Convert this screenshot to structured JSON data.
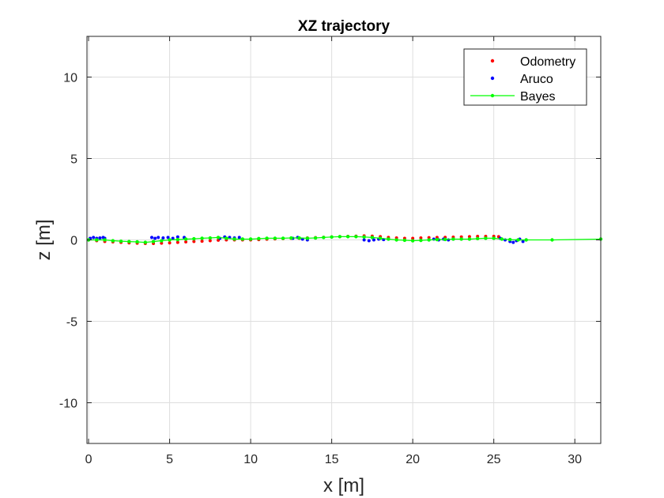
{
  "chart_data": {
    "type": "scatter",
    "title": "XZ trajectory",
    "xlabel": "x [m]",
    "ylabel": "z [m]",
    "xlim": [
      -0.1,
      31.6
    ],
    "ylim": [
      -12.5,
      12.5
    ],
    "xticks": [
      0,
      5,
      10,
      15,
      20,
      25,
      30
    ],
    "yticks": [
      -10,
      -5,
      0,
      5,
      10
    ],
    "grid": true,
    "legend_position": "top-right",
    "series": [
      {
        "name": "Odometry",
        "style": "markers",
        "color": "#ff0000",
        "x": [
          0,
          0.5,
          1,
          1.5,
          2,
          2.5,
          3,
          3.5,
          4,
          4.5,
          5,
          5.5,
          6,
          6.5,
          7,
          7.5,
          8,
          8.5,
          9,
          9.5,
          10,
          10.5,
          11,
          11.5,
          12,
          12.5,
          13,
          13.5,
          14,
          14.5,
          15,
          15.5,
          16,
          16.5,
          17,
          17.5,
          18,
          18.5,
          19,
          19.5,
          20,
          20.5,
          21,
          21.5,
          22,
          22.5,
          23,
          23.5,
          24,
          24.5,
          25,
          25.3
        ],
        "y": [
          0.0,
          -0.05,
          -0.1,
          -0.12,
          -0.15,
          -0.18,
          -0.2,
          -0.22,
          -0.22,
          -0.2,
          -0.18,
          -0.15,
          -0.12,
          -0.1,
          -0.08,
          -0.05,
          -0.02,
          0.0,
          0.0,
          0.0,
          0.0,
          0.02,
          0.04,
          0.06,
          0.08,
          0.1,
          0.1,
          0.12,
          0.14,
          0.16,
          0.18,
          0.2,
          0.22,
          0.23,
          0.25,
          0.23,
          0.2,
          0.15,
          0.12,
          0.1,
          0.1,
          0.12,
          0.14,
          0.15,
          0.16,
          0.17,
          0.18,
          0.2,
          0.22,
          0.22,
          0.22,
          0.2
        ]
      },
      {
        "name": "Aruco",
        "style": "markers",
        "color": "#0000ff",
        "x": [
          0.1,
          0.3,
          0.5,
          0.7,
          0.9,
          1.0,
          3.9,
          4.1,
          4.3,
          4.6,
          4.9,
          5.2,
          5.5,
          5.9,
          8.1,
          8.4,
          8.7,
          9.0,
          9.3,
          12.6,
          12.9,
          13.2,
          13.5,
          17.0,
          17.3,
          17.6,
          17.9,
          18.2,
          18.5,
          21.0,
          21.3,
          21.6,
          21.9,
          22.2,
          22.5,
          25.4,
          25.7,
          26.0,
          26.2,
          26.4,
          26.6,
          26.8,
          27.0
        ],
        "y": [
          0.1,
          0.15,
          0.1,
          0.12,
          0.15,
          0.1,
          0.15,
          0.1,
          0.15,
          0.12,
          0.15,
          0.1,
          0.18,
          0.15,
          0.1,
          0.18,
          0.15,
          0.12,
          0.15,
          0.1,
          0.15,
          0.05,
          0.0,
          0.0,
          -0.05,
          0.0,
          0.05,
          0.02,
          0.05,
          0.0,
          0.05,
          0.0,
          0.05,
          0.0,
          0.05,
          0.1,
          0.0,
          -0.1,
          -0.15,
          -0.05,
          0.05,
          -0.1,
          0.0
        ]
      },
      {
        "name": "Bayes",
        "style": "line-markers",
        "color": "#00ff00",
        "x": [
          0,
          0.5,
          1,
          1.5,
          2,
          2.5,
          3,
          3.5,
          4,
          4.5,
          5,
          5.5,
          6,
          6.5,
          7,
          7.5,
          8,
          8.5,
          9,
          9.5,
          10,
          10.5,
          11,
          11.5,
          12,
          12.5,
          13,
          13.5,
          14,
          14.5,
          15,
          15.5,
          16,
          16.5,
          17,
          17.5,
          18,
          18.5,
          19,
          19.5,
          20,
          20.5,
          21,
          21.5,
          22,
          22.5,
          23,
          23.5,
          24,
          24.5,
          25,
          25.5,
          26,
          26.5,
          27,
          28.6,
          31.6
        ],
        "y": [
          0.0,
          0.0,
          0.0,
          -0.05,
          -0.08,
          -0.1,
          -0.12,
          -0.15,
          -0.1,
          -0.05,
          0.0,
          0.02,
          0.05,
          0.07,
          0.1,
          0.12,
          0.15,
          0.1,
          0.05,
          0.05,
          0.05,
          0.08,
          0.1,
          0.1,
          0.1,
          0.12,
          0.12,
          0.1,
          0.12,
          0.15,
          0.18,
          0.2,
          0.2,
          0.2,
          0.18,
          0.15,
          0.1,
          0.05,
          0.0,
          -0.02,
          -0.05,
          -0.03,
          0.0,
          0.02,
          0.03,
          0.05,
          0.05,
          0.05,
          0.08,
          0.1,
          0.1,
          0.05,
          0.02,
          0.0,
          0.0,
          0.0,
          0.05
        ]
      }
    ]
  }
}
